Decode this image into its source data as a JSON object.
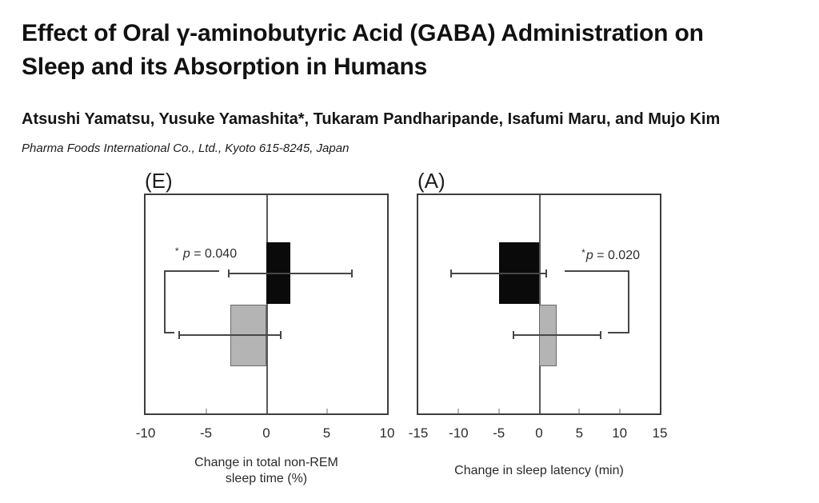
{
  "header": {
    "title_lines": [
      "Effect of Oral γ-aminobutyric Acid (GABA) Administration on",
      "Sleep and its Absorption in Humans"
    ],
    "authors": "Atsushi Yamatsu, Yusuke Yamashita*, Tukaram Pandharipande, Isafumi Maru, and Mujo Kim",
    "affiliation": "Pharma Foods International Co., Ltd., Kyoto 615-8245, Japan"
  },
  "chart_data": [
    {
      "type": "bar",
      "orientation": "horizontal",
      "panel_label": "(E)",
      "xlabel_lines": [
        "Change in total non-REM",
        "sleep time (%)"
      ],
      "xlim": [
        -10,
        10
      ],
      "ticks": [
        -10,
        -5,
        0,
        5,
        10
      ],
      "grid": false,
      "legend": "none",
      "series": [
        {
          "name": "black-bar",
          "color": "#0a0a0a",
          "value": 2.0,
          "error": 5.1
        },
        {
          "name": "gray-bar",
          "color": "#b4b4b4",
          "border": "#6a6a6a",
          "value": -3.0,
          "error": 4.2
        }
      ],
      "significance": {
        "star": "* ",
        "symbol": "p",
        "value_text": " = 0.040",
        "side": "left",
        "bracket_x": -8.5,
        "top_reach_x": -3.9,
        "bottom_reach_x": -7.6,
        "label_cx": -5.0,
        "label_cy_frac": 0.27
      }
    },
    {
      "type": "bar",
      "orientation": "horizontal",
      "panel_label": "(A)",
      "xlabel_lines": [
        "Change in sleep latency (min)"
      ],
      "xlim": [
        -15,
        15
      ],
      "ticks": [
        -15,
        -10,
        -5,
        0,
        5,
        10,
        15
      ],
      "grid": false,
      "legend": "none",
      "series": [
        {
          "name": "black-bar",
          "color": "#0a0a0a",
          "value": -5.0,
          "error": 5.9
        },
        {
          "name": "gray-bar",
          "color": "#b4b4b4",
          "border": "#6a6a6a",
          "value": 2.2,
          "error": 5.4
        }
      ],
      "significance": {
        "star": "*",
        "symbol": "p",
        "value_text": " = 0.020",
        "side": "right",
        "bracket_x": 11.0,
        "top_reach_x": 3.2,
        "bottom_reach_x": 8.5,
        "label_cx": 8.9,
        "label_cy_frac": 0.28
      }
    }
  ]
}
